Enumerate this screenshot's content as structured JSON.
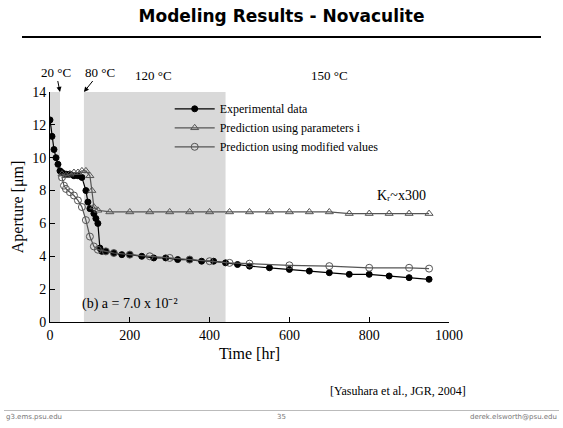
{
  "slide": {
    "title": "Modeling Results - Novaculite",
    "citation": "[Yasuhara et al., JGR, 2004]",
    "footer": {
      "left": "g3.ems.psu.edu",
      "center": "35",
      "right": "derek.elsworth@psu.edu"
    }
  },
  "chart_data": {
    "type": "line",
    "x_label": "Time [hr]",
    "y_label": "Aperture [μm]",
    "xlim": [
      0,
      1000
    ],
    "xticks": [
      0,
      200,
      400,
      600,
      800,
      1000
    ],
    "ylim": [
      0,
      14
    ],
    "yticks": [
      0,
      2,
      4,
      6,
      8,
      10,
      12,
      14
    ],
    "grid": false,
    "legend": "upper center",
    "shaded_periods": [
      [
        0,
        25
      ],
      [
        85,
        440
      ]
    ],
    "stage_labels": [
      {
        "text": "20 °C",
        "x": 25,
        "arrow": true
      },
      {
        "text": "80 °C",
        "x": 85,
        "arrow": true
      },
      {
        "text": "120 °C",
        "x": 260
      },
      {
        "text": "150 °C",
        "x": 700
      }
    ],
    "annotations": [
      {
        "text": "(b) a = 7.0 x 10⁻²",
        "x": 200,
        "y": 1.1
      },
      {
        "text": "Kᵣ~x300",
        "x": 880,
        "y": 7.7
      }
    ],
    "series": [
      {
        "name": "Experimental data",
        "color": "#000000",
        "marker": "circle",
        "line_style": "solid",
        "x": [
          0,
          5,
          10,
          15,
          20,
          25,
          30,
          40,
          50,
          60,
          70,
          80,
          90,
          95,
          100,
          110,
          115,
          120,
          125,
          130,
          140,
          160,
          180,
          200,
          230,
          260,
          290,
          320,
          350,
          380,
          410,
          440,
          470,
          500,
          550,
          600,
          650,
          700,
          750,
          800,
          850,
          900,
          950
        ],
        "values": [
          12.3,
          11.3,
          10.5,
          10.0,
          9.6,
          9.2,
          9.1,
          9.0,
          9.0,
          8.9,
          8.9,
          8.8,
          8.0,
          7.3,
          6.9,
          6.6,
          6.3,
          6.0,
          4.5,
          4.3,
          4.3,
          4.2,
          4.1,
          4.1,
          4.0,
          3.9,
          3.9,
          3.8,
          3.8,
          3.7,
          3.7,
          3.6,
          3.5,
          3.4,
          3.3,
          3.2,
          3.1,
          3.0,
          2.9,
          2.9,
          2.8,
          2.7,
          2.6
        ]
      },
      {
        "name": "Prediction using parameters i",
        "color": "#555555",
        "marker": "triangle-up-open",
        "line_style": "solid",
        "x": [
          30,
          40,
          50,
          60,
          70,
          80,
          90,
          100,
          105,
          110,
          120,
          150,
          200,
          250,
          300,
          350,
          400,
          450,
          500,
          550,
          600,
          650,
          700,
          750,
          800,
          850,
          900,
          950
        ],
        "values": [
          9.0,
          8.9,
          9.0,
          9.1,
          9.1,
          9.2,
          9.2,
          8.9,
          8.0,
          7.0,
          6.8,
          6.7,
          6.7,
          6.7,
          6.7,
          6.7,
          6.7,
          6.7,
          6.7,
          6.7,
          6.7,
          6.7,
          6.7,
          6.6,
          6.6,
          6.6,
          6.6,
          6.6
        ]
      },
      {
        "name": "Prediction using modified values",
        "color": "#555555",
        "marker": "circle-open",
        "line_style": "solid",
        "x": [
          30,
          35,
          40,
          50,
          60,
          70,
          80,
          90,
          100,
          110,
          120,
          140,
          160,
          200,
          250,
          300,
          350,
          400,
          450,
          500,
          600,
          700,
          800,
          900,
          950
        ],
        "values": [
          8.8,
          8.3,
          8.1,
          7.9,
          7.7,
          7.4,
          7.0,
          6.2,
          5.2,
          4.6,
          4.4,
          4.3,
          4.2,
          4.1,
          4.0,
          3.9,
          3.8,
          3.7,
          3.6,
          3.55,
          3.45,
          3.4,
          3.3,
          3.3,
          3.25
        ]
      }
    ]
  }
}
